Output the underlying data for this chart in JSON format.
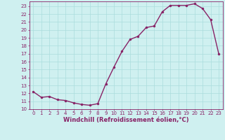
{
  "x": [
    0,
    1,
    2,
    3,
    4,
    5,
    6,
    7,
    8,
    9,
    10,
    11,
    12,
    13,
    14,
    15,
    16,
    17,
    18,
    19,
    20,
    21,
    22,
    23
  ],
  "y": [
    12.2,
    11.5,
    11.6,
    11.2,
    11.1,
    10.8,
    10.6,
    10.5,
    10.7,
    13.2,
    15.3,
    17.3,
    18.8,
    19.2,
    20.3,
    20.5,
    22.3,
    23.1,
    23.1,
    23.1,
    23.3,
    22.7,
    21.3,
    17.0
  ],
  "line_color": "#882266",
  "marker": "o",
  "markersize": 2.2,
  "linewidth": 1.0,
  "bg_color": "#cff0f0",
  "grid_color": "#aadddd",
  "xlabel": "Windchill (Refroidissement éolien,°C)",
  "xlim": [
    -0.5,
    23.5
  ],
  "ylim": [
    10,
    23.6
  ],
  "yticks": [
    10,
    11,
    12,
    13,
    14,
    15,
    16,
    17,
    18,
    19,
    20,
    21,
    22,
    23
  ],
  "xticks": [
    0,
    1,
    2,
    3,
    4,
    5,
    6,
    7,
    8,
    9,
    10,
    11,
    12,
    13,
    14,
    15,
    16,
    17,
    18,
    19,
    20,
    21,
    22,
    23
  ],
  "tick_color": "#882266",
  "tick_fontsize": 5.0,
  "xlabel_fontsize": 6.0,
  "xlabel_color": "#882266"
}
